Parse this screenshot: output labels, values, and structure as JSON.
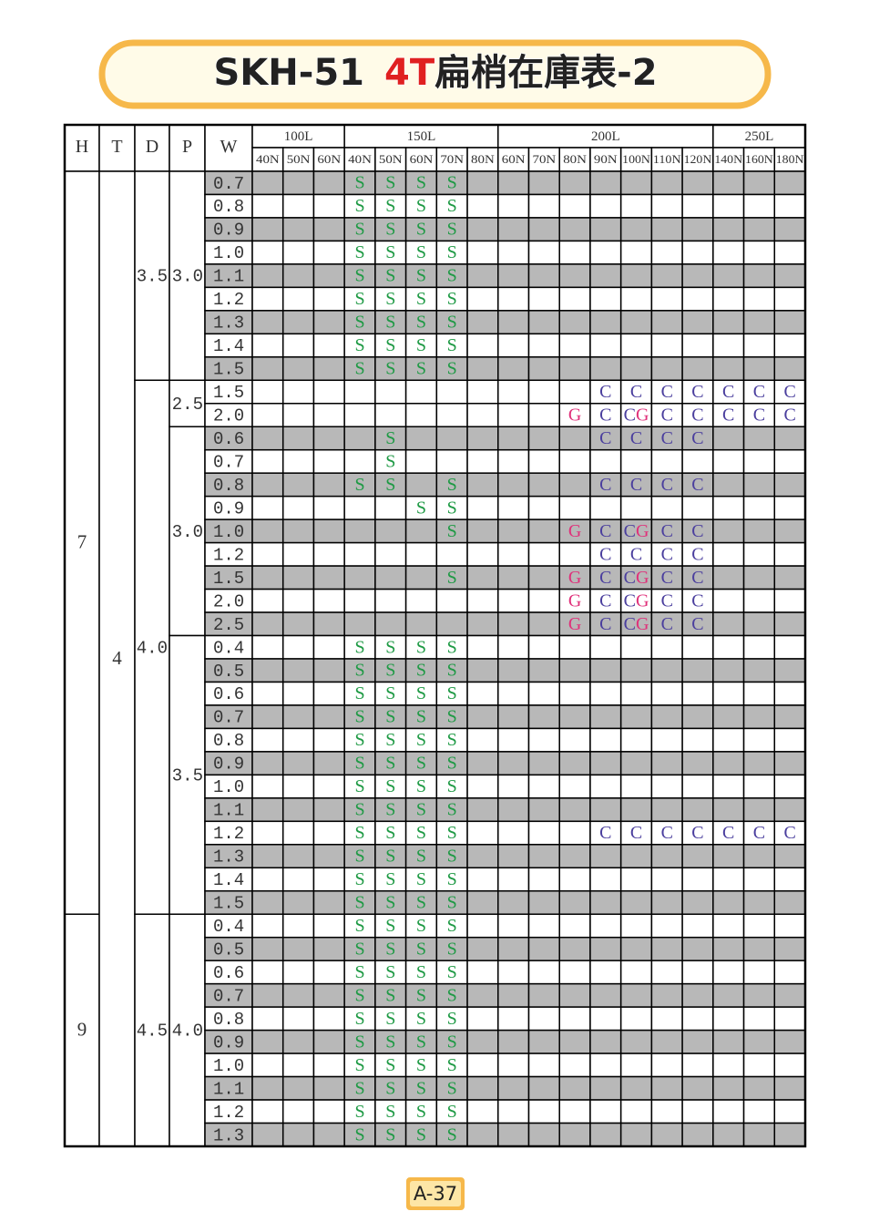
{
  "header": {
    "code": "SKH-51",
    "type": "4T",
    "name": "扁梢在庫表-2"
  },
  "table": {
    "header": [
      "H",
      "T",
      "D",
      "P",
      "W"
    ],
    "groups": [
      {
        "label": "100L",
        "columns": [
          "40N",
          "50N",
          "60N"
        ]
      },
      {
        "label": "150L",
        "columns": [
          "40N",
          "50N",
          "60N",
          "70N",
          "80N"
        ]
      },
      {
        "label": "200L",
        "columns": [
          "60N",
          "70N",
          "80N",
          "90N",
          "100N",
          "110N",
          "120N"
        ]
      },
      {
        "label": "250L",
        "columns": [
          "140N",
          "160N",
          "180N"
        ]
      }
    ],
    "rows": [
      {
        "h": "7",
        "t": "4",
        "d": "3.5",
        "p": "3.0",
        "w": "0.7",
        "cells": [
          null,
          null,
          null,
          "S",
          "S",
          "S",
          "S",
          null,
          null,
          null,
          null,
          null,
          null,
          null,
          null,
          null,
          null,
          null
        ]
      },
      {
        "w": "0.8",
        "cells": [
          null,
          null,
          null,
          "S",
          "S",
          "S",
          "S",
          null,
          null,
          null,
          null,
          null,
          null,
          null,
          null,
          null,
          null,
          null
        ]
      },
      {
        "w": "0.9",
        "cells": [
          null,
          null,
          null,
          "S",
          "S",
          "S",
          "S",
          null,
          null,
          null,
          null,
          null,
          null,
          null,
          null,
          null,
          null,
          null
        ]
      },
      {
        "w": "1.0",
        "cells": [
          null,
          null,
          null,
          "S",
          "S",
          "S",
          "S",
          null,
          null,
          null,
          null,
          null,
          null,
          null,
          null,
          null,
          null,
          null
        ]
      },
      {
        "w": "1.1",
        "cells": [
          null,
          null,
          null,
          "S",
          "S",
          "S",
          "S",
          null,
          null,
          null,
          null,
          null,
          null,
          null,
          null,
          null,
          null,
          null
        ]
      },
      {
        "w": "1.2",
        "cells": [
          null,
          null,
          null,
          "S",
          "S",
          "S",
          "S",
          null,
          null,
          null,
          null,
          null,
          null,
          null,
          null,
          null,
          null,
          null
        ]
      },
      {
        "w": "1.3",
        "cells": [
          null,
          null,
          null,
          "S",
          "S",
          "S",
          "S",
          null,
          null,
          null,
          null,
          null,
          null,
          null,
          null,
          null,
          null,
          null
        ]
      },
      {
        "w": "1.4",
        "cells": [
          null,
          null,
          null,
          "S",
          "S",
          "S",
          "S",
          null,
          null,
          null,
          null,
          null,
          null,
          null,
          null,
          null,
          null,
          null
        ]
      },
      {
        "w": "1.5",
        "cells": [
          null,
          null,
          null,
          "S",
          "S",
          "S",
          "S",
          null,
          null,
          null,
          null,
          null,
          null,
          null,
          null,
          null,
          null,
          null
        ]
      },
      {
        "d": "4.0",
        "p": "2.5",
        "w": "1.5",
        "cells": [
          null,
          null,
          null,
          null,
          null,
          null,
          null,
          null,
          null,
          null,
          null,
          "C",
          "C",
          "C",
          "C",
          "C",
          "C",
          "C"
        ]
      },
      {
        "w": "2.0",
        "cells": [
          null,
          null,
          null,
          null,
          null,
          null,
          null,
          null,
          null,
          null,
          "G",
          "C",
          "CG",
          "C",
          "C",
          "C",
          "C",
          "C"
        ]
      },
      {
        "p": "3.0",
        "w": "0.6",
        "cells": [
          null,
          null,
          null,
          null,
          "S",
          null,
          null,
          null,
          null,
          null,
          null,
          "C",
          "C",
          "C",
          "C",
          null,
          null,
          null
        ]
      },
      {
        "w": "0.7",
        "cells": [
          null,
          null,
          null,
          null,
          "S",
          null,
          null,
          null,
          null,
          null,
          null,
          null,
          null,
          null,
          null,
          null,
          null,
          null
        ]
      },
      {
        "w": "0.8",
        "cells": [
          null,
          null,
          null,
          "S",
          "S",
          null,
          "S",
          null,
          null,
          null,
          null,
          "C",
          "C",
          "C",
          "C",
          null,
          null,
          null
        ]
      },
      {
        "w": "0.9",
        "cells": [
          null,
          null,
          null,
          null,
          null,
          "S",
          "S",
          null,
          null,
          null,
          null,
          null,
          null,
          null,
          null,
          null,
          null,
          null
        ]
      },
      {
        "w": "1.0",
        "cells": [
          null,
          null,
          null,
          null,
          null,
          null,
          "S",
          null,
          null,
          null,
          "G",
          "C",
          "CG",
          "C",
          "C",
          null,
          null,
          null
        ]
      },
      {
        "w": "1.2",
        "cells": [
          null,
          null,
          null,
          null,
          null,
          null,
          null,
          null,
          null,
          null,
          null,
          "C",
          "C",
          "C",
          "C",
          null,
          null,
          null
        ]
      },
      {
        "w": "1.5",
        "cells": [
          null,
          null,
          null,
          null,
          null,
          null,
          "S",
          null,
          null,
          null,
          "G",
          "C",
          "CG",
          "C",
          "C",
          null,
          null,
          null
        ]
      },
      {
        "w": "2.0",
        "cells": [
          null,
          null,
          null,
          null,
          null,
          null,
          null,
          null,
          null,
          null,
          "G",
          "C",
          "CG",
          "C",
          "C",
          null,
          null,
          null
        ]
      },
      {
        "w": "2.5",
        "cells": [
          null,
          null,
          null,
          null,
          null,
          null,
          null,
          null,
          null,
          null,
          "G",
          "C",
          "CG",
          "C",
          "C",
          null,
          null,
          null
        ]
      },
      {
        "p": "3.5",
        "w": "0.4",
        "cells": [
          null,
          null,
          null,
          "S",
          "S",
          "S",
          "S",
          null,
          null,
          null,
          null,
          null,
          null,
          null,
          null,
          null,
          null,
          null
        ]
      },
      {
        "w": "0.5",
        "cells": [
          null,
          null,
          null,
          "S",
          "S",
          "S",
          "S",
          null,
          null,
          null,
          null,
          null,
          null,
          null,
          null,
          null,
          null,
          null
        ]
      },
      {
        "w": "0.6",
        "cells": [
          null,
          null,
          null,
          "S",
          "S",
          "S",
          "S",
          null,
          null,
          null,
          null,
          null,
          null,
          null,
          null,
          null,
          null,
          null
        ]
      },
      {
        "w": "0.7",
        "cells": [
          null,
          null,
          null,
          "S",
          "S",
          "S",
          "S",
          null,
          null,
          null,
          null,
          null,
          null,
          null,
          null,
          null,
          null,
          null
        ]
      },
      {
        "w": "0.8",
        "cells": [
          null,
          null,
          null,
          "S",
          "S",
          "S",
          "S",
          null,
          null,
          null,
          null,
          null,
          null,
          null,
          null,
          null,
          null,
          null
        ]
      },
      {
        "w": "0.9",
        "cells": [
          null,
          null,
          null,
          "S",
          "S",
          "S",
          "S",
          null,
          null,
          null,
          null,
          null,
          null,
          null,
          null,
          null,
          null,
          null
        ]
      },
      {
        "w": "1.0",
        "cells": [
          null,
          null,
          null,
          "S",
          "S",
          "S",
          "S",
          null,
          null,
          null,
          null,
          null,
          null,
          null,
          null,
          null,
          null,
          null
        ]
      },
      {
        "w": "1.1",
        "cells": [
          null,
          null,
          null,
          "S",
          "S",
          "S",
          "S",
          null,
          null,
          null,
          null,
          null,
          null,
          null,
          null,
          null,
          null,
          null
        ]
      },
      {
        "w": "1.2",
        "cells": [
          null,
          null,
          null,
          "S",
          "S",
          "S",
          "S",
          null,
          null,
          null,
          null,
          "C",
          "C",
          "C",
          "C",
          "C",
          "C",
          "C"
        ]
      },
      {
        "w": "1.3",
        "cells": [
          null,
          null,
          null,
          "S",
          "S",
          "S",
          "S",
          null,
          null,
          null,
          null,
          null,
          null,
          null,
          null,
          null,
          null,
          null
        ]
      },
      {
        "w": "1.4",
        "cells": [
          null,
          null,
          null,
          "S",
          "S",
          "S",
          "S",
          null,
          null,
          null,
          null,
          null,
          null,
          null,
          null,
          null,
          null,
          null
        ]
      },
      {
        "w": "1.5",
        "cells": [
          null,
          null,
          null,
          "S",
          "S",
          "S",
          "S",
          null,
          null,
          null,
          null,
          null,
          null,
          null,
          null,
          null,
          null,
          null
        ]
      },
      {
        "h": "9",
        "d": "4.5",
        "p": "4.0",
        "w": "0.4",
        "cells": [
          null,
          null,
          null,
          "S",
          "S",
          "S",
          "S",
          null,
          null,
          null,
          null,
          null,
          null,
          null,
          null,
          null,
          null,
          null
        ]
      },
      {
        "w": "0.5",
        "cells": [
          null,
          null,
          null,
          "S",
          "S",
          "S",
          "S",
          null,
          null,
          null,
          null,
          null,
          null,
          null,
          null,
          null,
          null,
          null
        ]
      },
      {
        "w": "0.6",
        "cells": [
          null,
          null,
          null,
          "S",
          "S",
          "S",
          "S",
          null,
          null,
          null,
          null,
          null,
          null,
          null,
          null,
          null,
          null,
          null
        ]
      },
      {
        "w": "0.7",
        "cells": [
          null,
          null,
          null,
          "S",
          "S",
          "S",
          "S",
          null,
          null,
          null,
          null,
          null,
          null,
          null,
          null,
          null,
          null,
          null
        ]
      },
      {
        "w": "0.8",
        "cells": [
          null,
          null,
          null,
          "S",
          "S",
          "S",
          "S",
          null,
          null,
          null,
          null,
          null,
          null,
          null,
          null,
          null,
          null,
          null
        ]
      },
      {
        "w": "0.9",
        "cells": [
          null,
          null,
          null,
          "S",
          "S",
          "S",
          "S",
          null,
          null,
          null,
          null,
          null,
          null,
          null,
          null,
          null,
          null,
          null
        ]
      },
      {
        "w": "1.0",
        "cells": [
          null,
          null,
          null,
          "S",
          "S",
          "S",
          "S",
          null,
          null,
          null,
          null,
          null,
          null,
          null,
          null,
          null,
          null,
          null
        ]
      },
      {
        "w": "1.1",
        "cells": [
          null,
          null,
          null,
          "S",
          "S",
          "S",
          "S",
          null,
          null,
          null,
          null,
          null,
          null,
          null,
          null,
          null,
          null,
          null
        ]
      },
      {
        "w": "1.2",
        "cells": [
          null,
          null,
          null,
          "S",
          "S",
          "S",
          "S",
          null,
          null,
          null,
          null,
          null,
          null,
          null,
          null,
          null,
          null,
          null
        ]
      },
      {
        "w": "1.3",
        "cells": [
          null,
          null,
          null,
          "S",
          "S",
          "S",
          "S",
          null,
          null,
          null,
          null,
          null,
          null,
          null,
          null,
          null,
          null,
          null
        ]
      }
    ]
  },
  "footer": {
    "page": "A-37"
  }
}
